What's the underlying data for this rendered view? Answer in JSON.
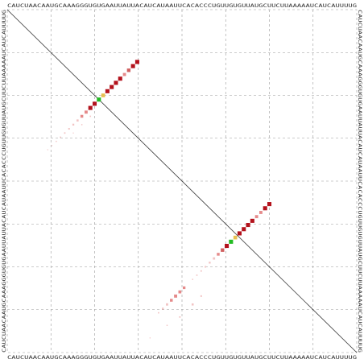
{
  "sequence": "CAUCUAACAAUGCAAAGGGUGUGAAUUAUUACAUCAUAAUUCACACCCUGUUGUGUUAUGCUUCUUAAAAAUCAUCAUUUUG",
  "colors": {
    "background": "#ffffff",
    "grid": "#9a9a9a",
    "diagonal": "#333333",
    "text": "#333333",
    "level_low": "#f2c4c4",
    "level_mid": "#e58a8a",
    "level_high": "#d06060",
    "level_max": "#b3121c",
    "accent_green": "#22bb22",
    "accent_yellow": "#e8c050"
  },
  "dotplot": {
    "upper_triangle": [
      {
        "i": 46,
        "j": 61,
        "p": 0.95
      },
      {
        "i": 47,
        "j": 60,
        "p": 0.95
      },
      {
        "i": 48,
        "j": 59,
        "p": 0.55
      },
      {
        "i": 49,
        "j": 58,
        "p": 0.55
      },
      {
        "i": 50,
        "j": 57,
        "p": 0.95
      },
      {
        "i": 51,
        "j": 56,
        "p": 0.95
      },
      {
        "i": 52,
        "j": 55,
        "p": 0.95
      },
      {
        "i": 53,
        "j": 54,
        "p": 0.95
      },
      {
        "i": 54,
        "j": 53,
        "p": 0.8,
        "color": "yellow"
      },
      {
        "i": 55,
        "j": 52,
        "p": 0.95,
        "color": "green"
      },
      {
        "i": 56,
        "j": 51,
        "p": 0.95
      },
      {
        "i": 57,
        "j": 50,
        "p": 0.7
      },
      {
        "i": 58,
        "j": 49,
        "p": 0.45
      },
      {
        "i": 59,
        "j": 48,
        "p": 0.3
      },
      {
        "i": 60,
        "j": 47,
        "p": 0.2
      },
      {
        "i": 61,
        "j": 46,
        "p": 0.15
      },
      {
        "i": 62,
        "j": 45,
        "p": 0.12
      },
      {
        "i": 63,
        "j": 44,
        "p": 0.1
      },
      {
        "i": 64,
        "j": 43,
        "p": 0.08
      },
      {
        "i": 66,
        "j": 41,
        "p": 0.4
      },
      {
        "i": 67,
        "j": 40,
        "p": 0.5
      },
      {
        "i": 68,
        "j": 39,
        "p": 0.55
      },
      {
        "i": 69,
        "j": 38,
        "p": 0.45
      },
      {
        "i": 70,
        "j": 37,
        "p": 0.3
      },
      {
        "i": 71,
        "j": 36,
        "p": 0.2
      },
      {
        "i": 72,
        "j": 35,
        "p": 0.1
      },
      {
        "i": 68,
        "j": 45,
        "p": 0.15
      },
      {
        "i": 70,
        "j": 43,
        "p": 0.25
      },
      {
        "i": 73,
        "j": 40,
        "p": 0.12
      },
      {
        "i": 75,
        "j": 37,
        "p": 0.08
      },
      {
        "i": 78,
        "j": 33,
        "p": 0.05
      }
    ],
    "lower_triangle": [
      {
        "i": 12,
        "j": 30,
        "p": 0.95
      },
      {
        "i": 13,
        "j": 29,
        "p": 0.95
      },
      {
        "i": 14,
        "j": 28,
        "p": 0.7
      },
      {
        "i": 15,
        "j": 27,
        "p": 0.55
      },
      {
        "i": 16,
        "j": 26,
        "p": 0.95
      },
      {
        "i": 17,
        "j": 25,
        "p": 0.95
      },
      {
        "i": 18,
        "j": 24,
        "p": 0.95
      },
      {
        "i": 19,
        "j": 23,
        "p": 0.95
      },
      {
        "i": 20,
        "j": 22,
        "p": 0.8,
        "color": "yellow"
      },
      {
        "i": 21,
        "j": 21,
        "p": 0.95,
        "color": "green"
      },
      {
        "i": 22,
        "j": 20,
        "p": 0.95
      },
      {
        "i": 23,
        "j": 19,
        "p": 0.95
      },
      {
        "i": 24,
        "j": 18,
        "p": 0.55
      },
      {
        "i": 25,
        "j": 17,
        "p": 0.45
      },
      {
        "i": 26,
        "j": 16,
        "p": 0.25
      },
      {
        "i": 27,
        "j": 15,
        "p": 0.2
      },
      {
        "i": 28,
        "j": 14,
        "p": 0.15
      },
      {
        "i": 29,
        "j": 13,
        "p": 0.12
      },
      {
        "i": 30,
        "j": 12,
        "p": 0.1
      },
      {
        "i": 31,
        "j": 11,
        "p": 0.08
      },
      {
        "i": 32,
        "j": 10,
        "p": 0.05
      },
      {
        "i": 33,
        "j": 9,
        "p": 0.04
      },
      {
        "i": 25,
        "j": 19,
        "p": 0.1
      },
      {
        "i": 27,
        "j": 17,
        "p": 0.08
      },
      {
        "i": 29,
        "j": 15,
        "p": 0.05
      }
    ]
  }
}
